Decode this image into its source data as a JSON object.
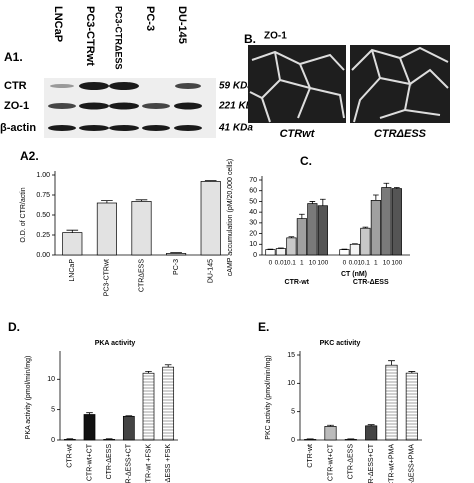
{
  "blot": {
    "panel_label": "A1.",
    "lanes": [
      "LNCaP",
      "PC3-CTRwt",
      "PC3-CTRΔESS",
      "PC-3",
      "DU-145"
    ],
    "rows": [
      "CTR",
      "ZO-1",
      "β-actin"
    ],
    "sizes": [
      "59 KDa",
      "221 KDa",
      "41 KDa"
    ]
  },
  "micrographs": {
    "panel_label": "B.",
    "stain": "ZO-1",
    "captions": [
      "CTRwt",
      "CTRΔESS"
    ]
  },
  "chart_data": [
    {
      "type": "bar",
      "panel_label": "A2.",
      "ylabel": "O.D. of CTR/actin",
      "categories": [
        "LNCaP",
        "PC3-CTRwt",
        "CTRΔESS",
        "PC-3",
        "DU-145"
      ],
      "values": [
        0.28,
        0.65,
        0.67,
        0.02,
        0.92
      ],
      "errors": [
        0.03,
        0.03,
        0.02,
        0.01,
        0.01
      ],
      "color": "#e2e2e2",
      "ylim": [
        0,
        1
      ],
      "yticks": [
        {
          "value": 0,
          "label": "0.00"
        },
        {
          "value": 0.25,
          "label": "0.25"
        },
        {
          "value": 0.5,
          "label": "0.50"
        },
        {
          "value": 0.75,
          "label": "0.75"
        },
        {
          "value": 1,
          "label": "1.00"
        }
      ]
    },
    {
      "type": "grouped",
      "panel_label": "C.",
      "ylabel": "cAMP accumulation (pM/20,000 cells)",
      "xlabel": "CT (nM)",
      "categories": [
        "CTR-wt",
        "CTR-ΔESS"
      ],
      "series": [
        {
          "name": "0",
          "color": "#ffffff",
          "values": [
            5,
            5
          ],
          "errors": [
            0.5,
            0.5
          ]
        },
        {
          "name": "0.01",
          "color": "#f4f4f4",
          "values": [
            6,
            10
          ],
          "errors": [
            0.5,
            0.5
          ]
        },
        {
          "name": "0.1",
          "color": "#c8c8c8",
          "values": [
            16,
            25
          ],
          "errors": [
            1,
            1
          ]
        },
        {
          "name": "1",
          "color": "#a0a0a0",
          "values": [
            34,
            51
          ],
          "errors": [
            4,
            5
          ]
        },
        {
          "name": "10",
          "color": "#7a7a7a",
          "values": [
            48,
            63
          ],
          "errors": [
            2,
            4
          ]
        },
        {
          "name": "100",
          "color": "#555555",
          "values": [
            46,
            62
          ],
          "errors": [
            6,
            1
          ]
        }
      ],
      "ylim": [
        0,
        70
      ],
      "yticks": [
        0,
        10,
        20,
        30,
        40,
        50,
        60,
        70
      ]
    },
    {
      "type": "bar",
      "panel_label": "D.",
      "title": "PKA activity",
      "ylabel": "PKA activity (pmol/min/mg)",
      "categories": [
        "CTR-wt",
        "CTR-wt+CT",
        "CTR-ΔESS",
        "CTR-ΔESS+CT",
        "CTR-wt +FSK",
        "CTR-ΔESS +FSK"
      ],
      "values": [
        0.1,
        4.2,
        0.1,
        3.9,
        11,
        12
      ],
      "errors": [
        0.1,
        0.3,
        0.1,
        0.1,
        0.3,
        0.4
      ],
      "colors": [
        "#ffffff",
        "#111111",
        "#ffffff",
        "#444444",
        "#ffffff",
        "#ffffff"
      ],
      "hatch": [
        false,
        false,
        false,
        false,
        true,
        true
      ],
      "ylim": [
        0,
        14
      ],
      "yticks": [
        0,
        5,
        10
      ]
    },
    {
      "type": "bar",
      "panel_label": "E.",
      "title": "PKC activity",
      "ylabel": "PKC activity (pmol/min/mg)",
      "categories": [
        "CTR-wt",
        "CTR-wt+CT",
        "CTR-ΔESS",
        "CTR-ΔESS+CT",
        "CTR-wt+PMA",
        "CTR-ΔESS+PMA"
      ],
      "values": [
        0.1,
        2.4,
        0.1,
        2.5,
        13.2,
        11.8
      ],
      "errors": [
        0.1,
        0.2,
        0.1,
        0.2,
        0.8,
        0.3
      ],
      "colors": [
        "#ffffff",
        "#bbbbbb",
        "#ffffff",
        "#444444",
        "#ffffff",
        "#ffffff"
      ],
      "hatch": [
        false,
        false,
        false,
        false,
        true,
        true
      ],
      "ylim": [
        0,
        15
      ],
      "yticks": [
        0,
        5,
        10,
        15
      ]
    }
  ]
}
